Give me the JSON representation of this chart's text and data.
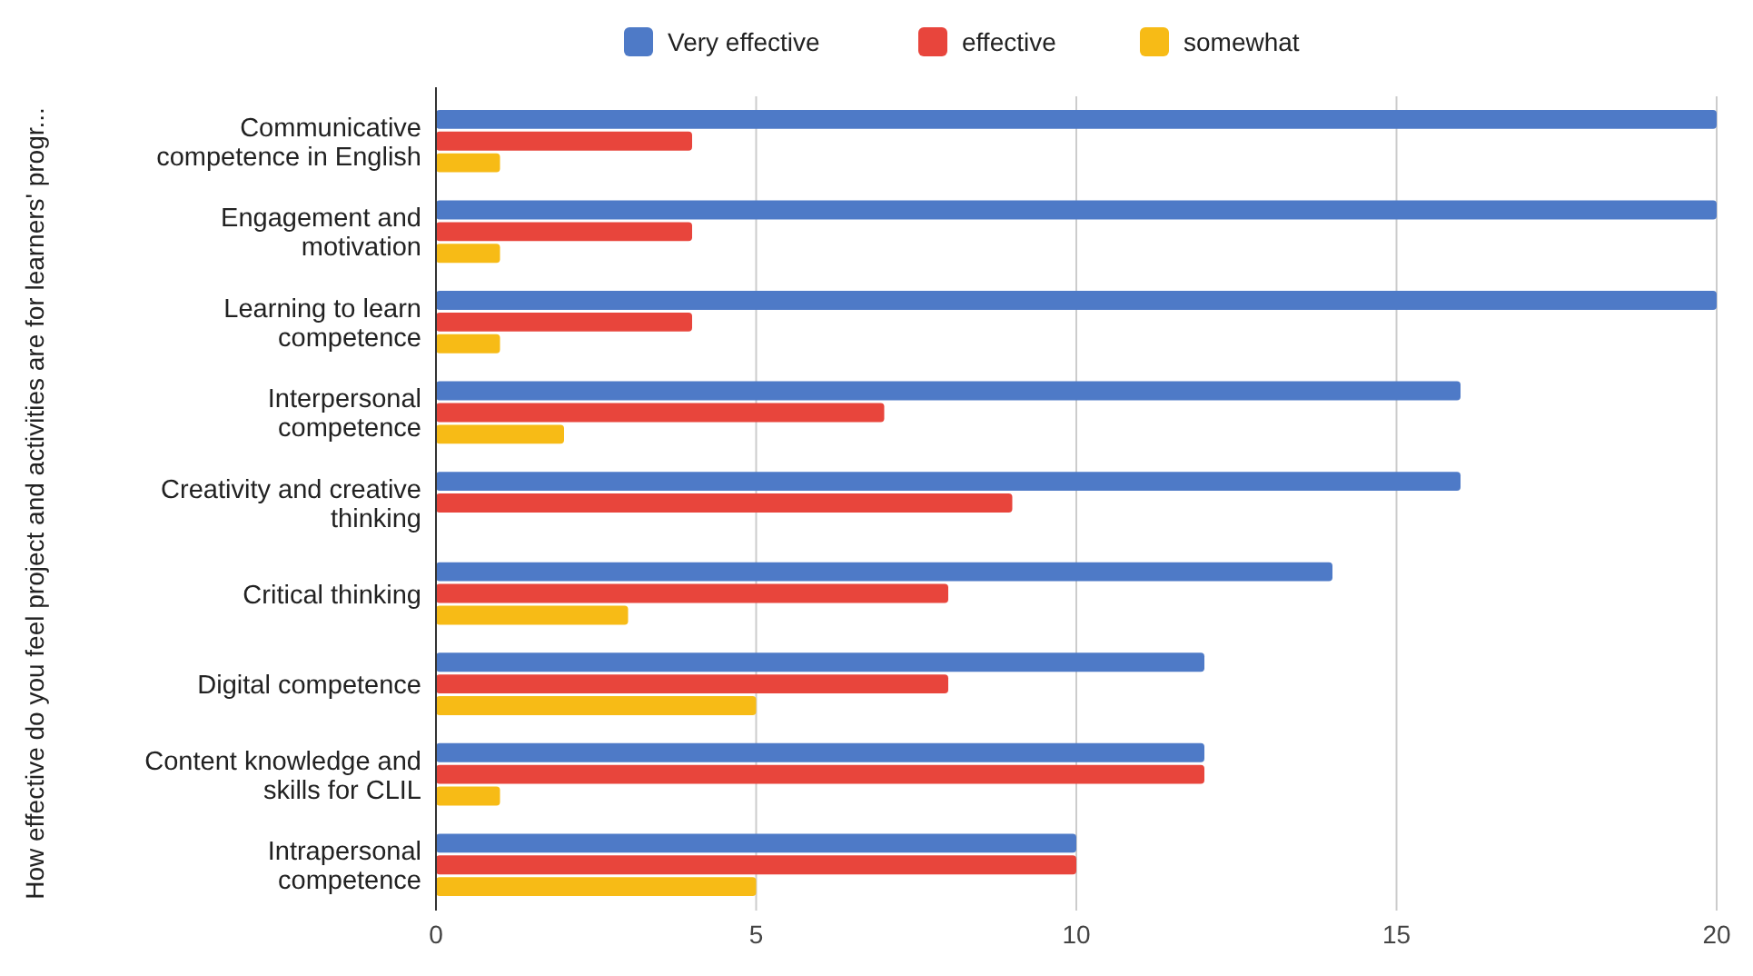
{
  "chart_data": {
    "type": "bar",
    "orientation": "horizontal",
    "ylabel": "How effective do you feel project and activities are for learners' progr...",
    "categories": [
      "Communicative competence in English",
      "Engagement and motivation",
      "Learning to learn competence",
      "Interpersonal competence",
      "Creativity and creative thinking",
      "Critical thinking",
      "Digital competence",
      "Content knowledge and skills for CLIL",
      "Intrapersonal competence"
    ],
    "series": [
      {
        "name": "Very effective",
        "color": "#4e7ac7",
        "values": [
          20,
          20,
          20,
          16,
          16,
          14,
          12,
          12,
          10
        ]
      },
      {
        "name": "effective",
        "color": "#e8453c",
        "values": [
          4,
          4,
          4,
          7,
          9,
          8,
          8,
          12,
          10
        ]
      },
      {
        "name": "somewhat",
        "color": "#f7bb16",
        "values": [
          1,
          1,
          1,
          2,
          0,
          3,
          5,
          1,
          5
        ]
      }
    ],
    "xlim": [
      0,
      20
    ],
    "xticks": [
      0,
      5,
      10,
      15,
      20
    ],
    "grid": "x",
    "legend": "top"
  }
}
